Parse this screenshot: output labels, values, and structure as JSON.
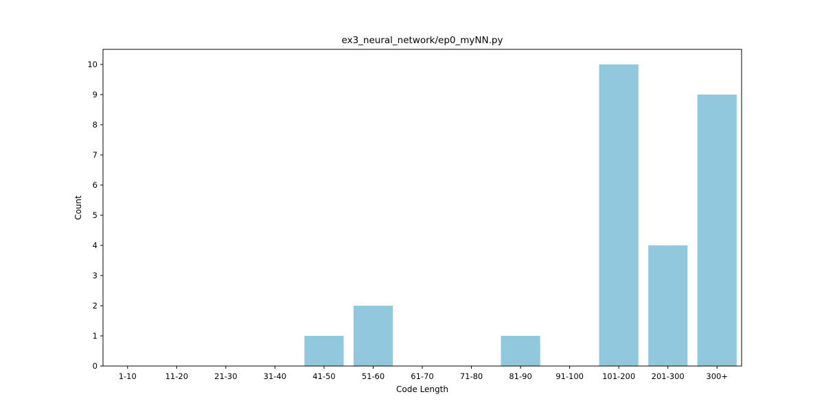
{
  "chart_data": {
    "type": "bar",
    "title": "ex3_neural_network/ep0_myNN.py",
    "xlabel": "Code Length",
    "ylabel": "Count",
    "categories": [
      "1-10",
      "11-20",
      "21-30",
      "31-40",
      "41-50",
      "51-60",
      "61-70",
      "71-80",
      "81-90",
      "91-100",
      "101-200",
      "201-300",
      "300+"
    ],
    "values": [
      0,
      0,
      0,
      0,
      1,
      2,
      0,
      0,
      1,
      0,
      10,
      4,
      9
    ],
    "ylim": [
      0,
      10.5
    ],
    "yticks": [
      0,
      1,
      2,
      3,
      4,
      5,
      6,
      7,
      8,
      9,
      10
    ],
    "bar_color": "#92c8dd",
    "grid": false,
    "legend": "none"
  }
}
